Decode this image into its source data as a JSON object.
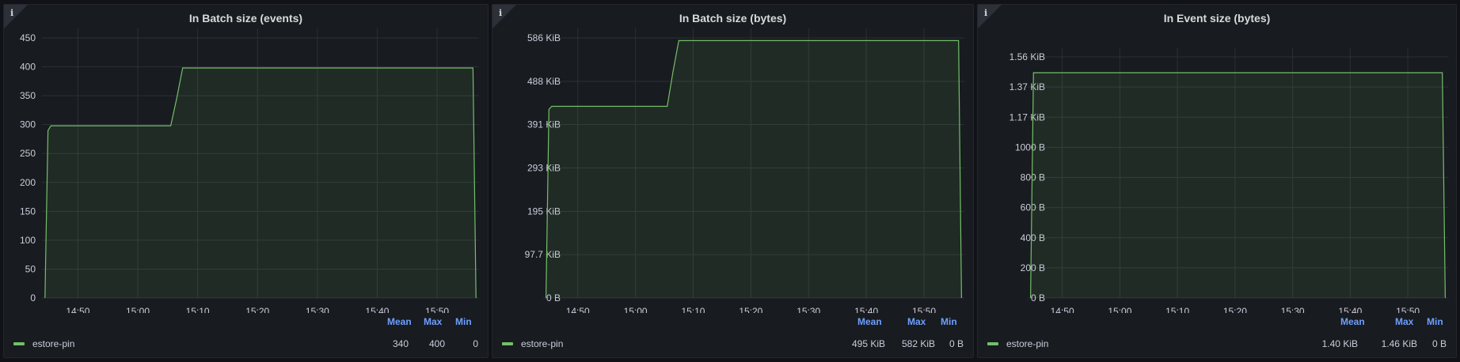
{
  "colors": {
    "series": "#73bf69",
    "legend_header": "#6e9fff",
    "info_icon": "info-icon"
  },
  "legend_headers": {
    "mean": "Mean",
    "max": "Max",
    "min": "Min"
  },
  "panels": [
    {
      "title": "In Batch size (events)",
      "legend": {
        "name": "estore-pin",
        "mean": "340",
        "max": "400",
        "min": "0"
      }
    },
    {
      "title": "In Batch size (bytes)",
      "legend": {
        "name": "estore-pin",
        "mean": "495 KiB",
        "max": "582 KiB",
        "min": "0 B"
      }
    },
    {
      "title": "In Event size (bytes)",
      "legend": {
        "name": "estore-pin",
        "mean": "1.40 KiB",
        "max": "1.46 KiB",
        "min": "0 B"
      }
    }
  ],
  "chart_data": [
    {
      "type": "area",
      "title": "In Batch size (events)",
      "x_ticks": [
        "14:50",
        "15:00",
        "15:10",
        "15:20",
        "15:30",
        "15:40",
        "15:50"
      ],
      "y_ticks": [
        "0",
        "50",
        "100",
        "150",
        "200",
        "250",
        "300",
        "350",
        "400",
        "450"
      ],
      "y_tick_values": [
        0,
        50,
        100,
        150,
        200,
        250,
        300,
        350,
        400,
        450
      ],
      "xlim": [
        -6,
        67
      ],
      "ylim": [
        0,
        450
      ],
      "series": [
        {
          "name": "estore-pin",
          "x": [
            -5.5,
            -5,
            -4.5,
            15.5,
            16.5,
            17.5,
            66,
            66.5
          ],
          "y": [
            0,
            290,
            298,
            298,
            345,
            398,
            398,
            0
          ]
        }
      ]
    },
    {
      "type": "area",
      "title": "In Batch size (bytes)",
      "x_ticks": [
        "14:50",
        "15:00",
        "15:10",
        "15:20",
        "15:30",
        "15:40",
        "15:50"
      ],
      "y_ticks": [
        "0 B",
        "97.7 KiB",
        "195 KiB",
        "293 KiB",
        "391 KiB",
        "488 KiB",
        "586 KiB"
      ],
      "y_tick_values": [
        0,
        97.7,
        195,
        293,
        391,
        488,
        586
      ],
      "xlim": [
        -6,
        67
      ],
      "ylim": [
        0,
        600
      ],
      "series": [
        {
          "name": "estore-pin",
          "x": [
            -5.5,
            -5,
            -4.5,
            15.5,
            16.5,
            17.5,
            66,
            66.5
          ],
          "y": [
            0,
            425,
            432,
            432,
            510,
            580,
            580,
            0
          ]
        }
      ]
    },
    {
      "type": "area",
      "title": "In Event size (bytes)",
      "x_ticks": [
        "14:50",
        "15:00",
        "15:10",
        "15:20",
        "15:30",
        "15:40",
        "15:50"
      ],
      "y_ticks": [
        "0 B",
        "200 B",
        "400 B",
        "600 B",
        "800 B",
        "1000 B",
        "1.17 KiB",
        "1.37 KiB",
        "1.56 KiB"
      ],
      "y_tick_values": [
        0,
        200,
        400,
        600,
        800,
        1000,
        1200,
        1400,
        1600
      ],
      "xlim": [
        -6,
        67
      ],
      "ylim": [
        0,
        1600
      ],
      "series": [
        {
          "name": "estore-pin",
          "x": [
            -5.5,
            -5,
            66,
            66.5
          ],
          "y": [
            0,
            1495,
            1495,
            0
          ]
        }
      ]
    }
  ]
}
